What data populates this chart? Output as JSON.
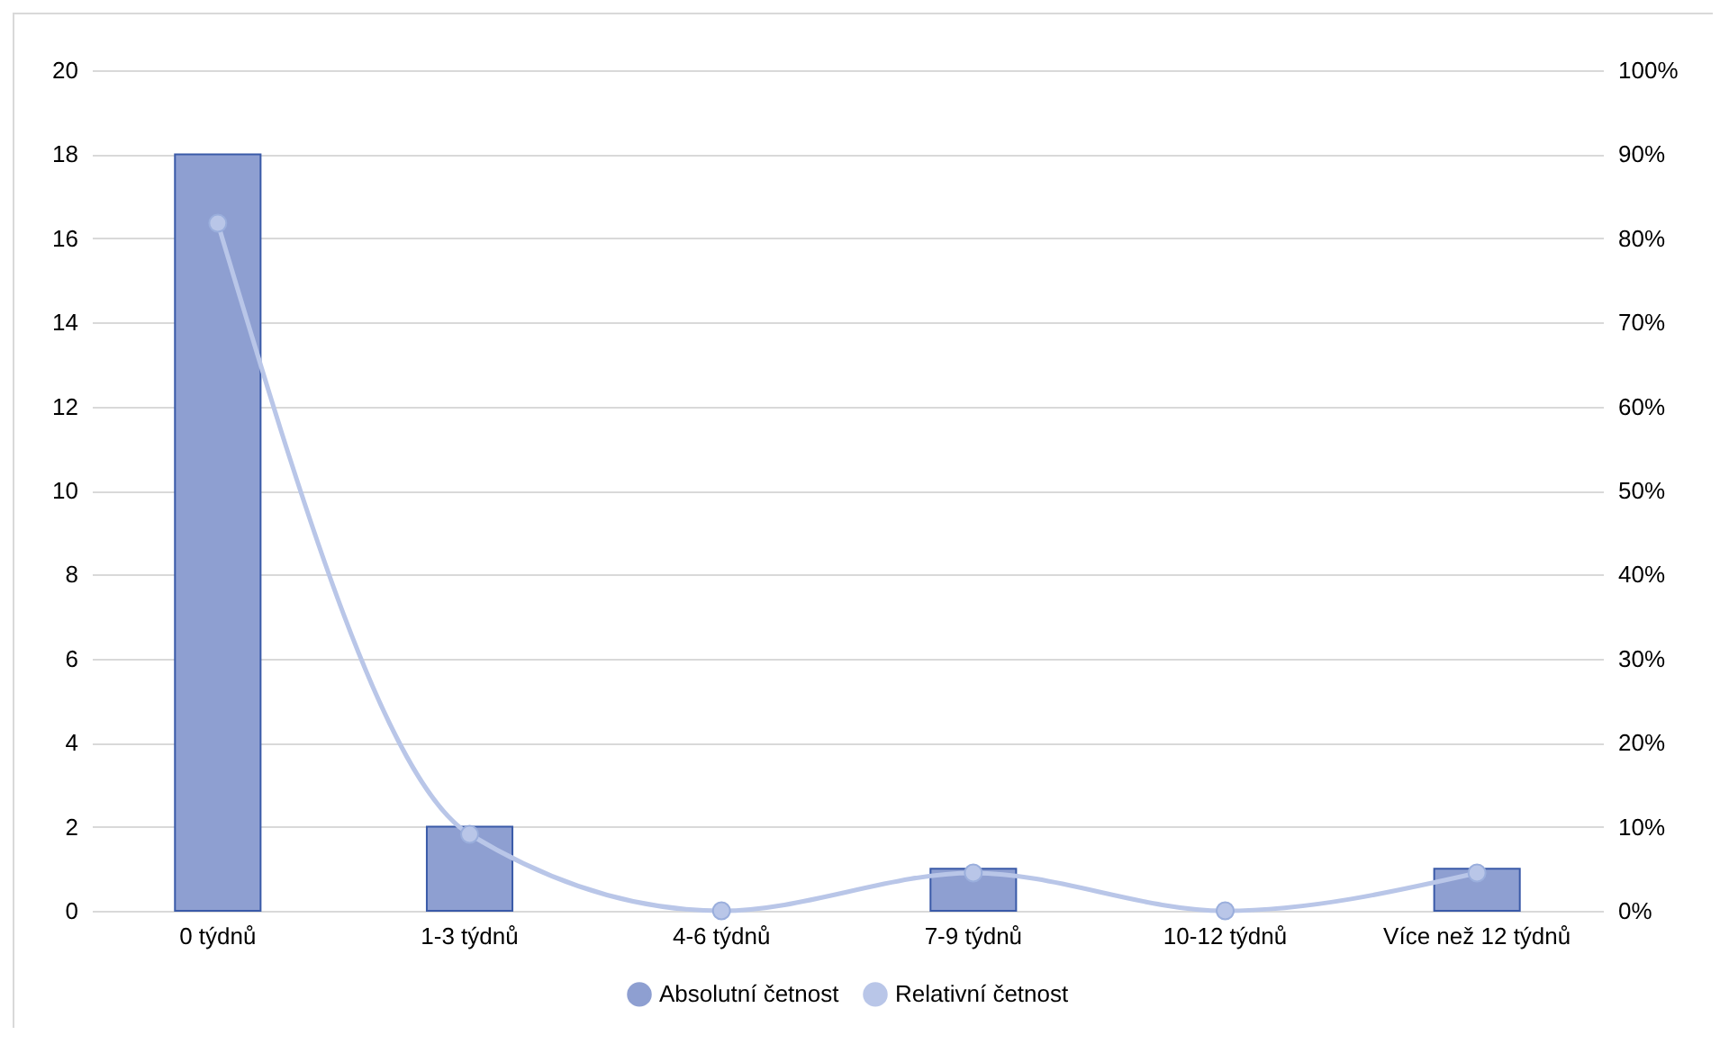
{
  "chart_data": {
    "type": "bar",
    "categories": [
      "0 týdnů",
      "1-3 týdnů",
      "4-6 týdnů",
      "7-9 týdnů",
      "10-12 týdnů",
      "Více než 12 týdnů"
    ],
    "series": [
      {
        "name": "Absolutní četnost",
        "color": "#8e9fd1",
        "values": [
          18,
          2,
          0,
          1,
          0,
          1
        ]
      },
      {
        "name": "Relativní četnost",
        "type": "line",
        "axis": "y2",
        "color": "#b9c6e8",
        "values": [
          81.8,
          9.1,
          0,
          4.5,
          0,
          4.5
        ]
      }
    ],
    "ylim": [
      0,
      20
    ],
    "yticks": [
      0,
      2,
      4,
      6,
      8,
      10,
      12,
      14,
      16,
      18,
      20
    ],
    "y2lim": [
      0,
      100
    ],
    "y2ticks": [
      {
        "value": 0,
        "label": "0%"
      },
      {
        "value": 10,
        "label": "10%"
      },
      {
        "value": 20,
        "label": "20%"
      },
      {
        "value": 30,
        "label": "30%"
      },
      {
        "value": 40,
        "label": "40%"
      },
      {
        "value": 50,
        "label": "50%"
      },
      {
        "value": 60,
        "label": "60%"
      },
      {
        "value": 70,
        "label": "70%"
      },
      {
        "value": 80,
        "label": "80%"
      },
      {
        "value": 90,
        "label": "90%"
      },
      {
        "value": 100,
        "label": "100%"
      }
    ],
    "grid": "y",
    "legend": "bottom",
    "marker": "circle",
    "line_style": "solid"
  }
}
